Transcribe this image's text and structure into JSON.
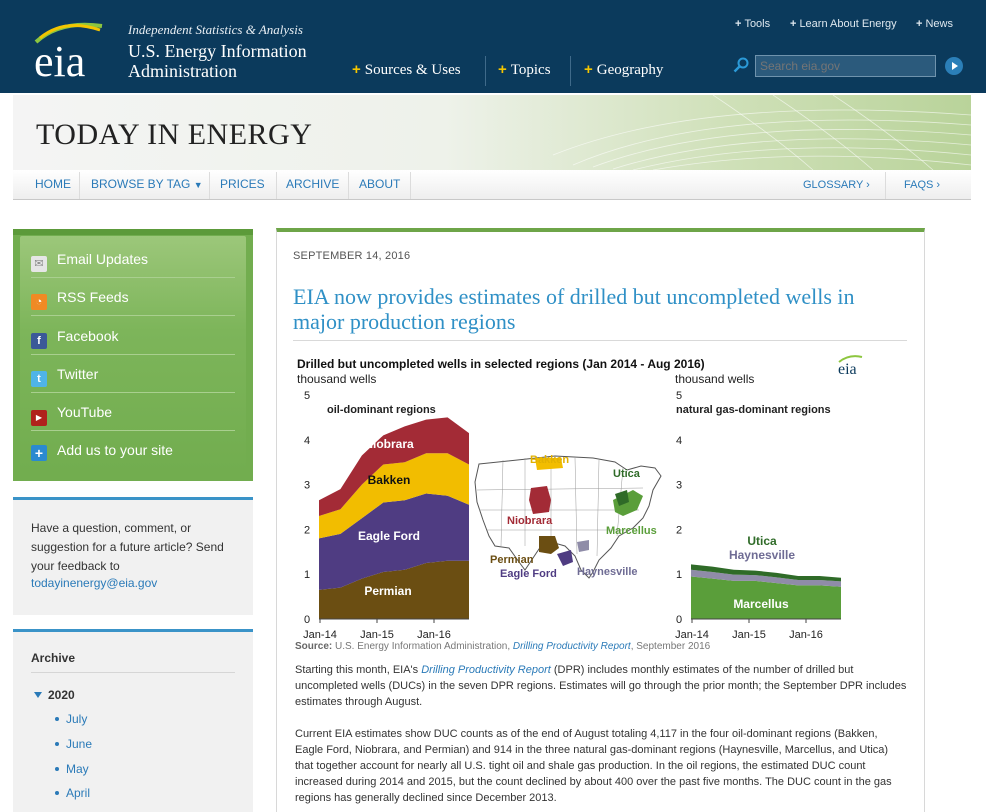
{
  "header": {
    "tagline": "Independent Statistics & Analysis",
    "name_line1": "U.S. Energy Information",
    "name_line2": "Administration",
    "logo_text": "eia",
    "utility_links": [
      "Tools",
      "Learn About Energy",
      "News"
    ],
    "main_nav": [
      "Sources & Uses",
      "Topics",
      "Geography"
    ],
    "search_placeholder": "Search eia.gov"
  },
  "banner": {
    "title": "TODAY IN ENERGY"
  },
  "subnav": {
    "items": [
      "HOME",
      "BROWSE BY TAG",
      "PRICES",
      "ARCHIVE",
      "ABOUT"
    ],
    "right_items": [
      "GLOSSARY ›",
      "FAQS ›"
    ]
  },
  "sidebar": {
    "social": [
      {
        "label": "Email Updates",
        "icon": "email-icon"
      },
      {
        "label": "RSS Feeds",
        "icon": "rss-icon"
      },
      {
        "label": "Facebook",
        "icon": "facebook-icon"
      },
      {
        "label": "Twitter",
        "icon": "twitter-icon"
      },
      {
        "label": "YouTube",
        "icon": "youtube-icon"
      },
      {
        "label": "Add us to your site",
        "icon": "plus-icon"
      }
    ],
    "feedback_text": "Have a question, comment, or suggestion for a future article? Send your feedback to",
    "feedback_email": "todayinenergy@eia.gov",
    "archive_title": "Archive",
    "archive_year": "2020",
    "archive_months": [
      "July",
      "June",
      "May",
      "April"
    ]
  },
  "article": {
    "date": "SEPTEMBER 14, 2016",
    "title": "EIA now provides estimates of drilled but uncompleted wells in major production regions",
    "source_label": "Source:",
    "source_text": "U.S. Energy Information Administration,",
    "source_link": "Drilling Productivity Report",
    "source_date": ", September 2016",
    "para1_a": "Starting this month, EIA's ",
    "para1_link": "Drilling Productivity Report",
    "para1_b": " (DPR) includes monthly estimates of the number of drilled but uncompleted wells (DUCs) in the seven DPR regions. Estimates will go through the prior month; the September DPR includes estimates through August.",
    "para2": "Current EIA estimates show DUC counts as of the end of August totaling 4,117 in the four oil-dominant regions (Bakken, Eagle Ford, Niobrara, and Permian) and 914 in the three natural gas-dominant regions (Haynesville, Marcellus, and Utica) that together account for nearly all U.S. tight oil and shale gas production. In the oil regions, the estimated DUC count increased during 2014 and 2015, but the count declined by about 400 over the past five months. The DUC count in the gas regions has generally declined since December 2013."
  },
  "chart_data": {
    "type": "area",
    "title": "Drilled but uncompleted wells in selected regions (Jan 2014 - Aug 2016)",
    "logo": "eia",
    "panels": [
      {
        "subtitle": "oil-dominant regions",
        "ylabel": "thousand wells",
        "ylim": [
          0,
          5
        ],
        "yticks": [
          "0",
          "1",
          "2",
          "3",
          "4",
          "5"
        ],
        "xticks": [
          "Jan-14",
          "Jan-15",
          "Jan-16"
        ],
        "series": [
          {
            "name": "Permian",
            "color": "#6b4e12",
            "values": [
              0.65,
              0.7,
              0.9,
              1.05,
              1.1,
              1.25,
              1.3,
              1.3
            ]
          },
          {
            "name": "Eagle Ford",
            "color": "#4f3c82",
            "values": [
              1.15,
              1.2,
              1.35,
              1.55,
              1.55,
              1.55,
              1.45,
              1.25
            ]
          },
          {
            "name": "Bakken",
            "color": "#f2bd00",
            "values": [
              0.5,
              0.55,
              0.75,
              0.85,
              0.85,
              0.9,
              0.95,
              0.9
            ]
          },
          {
            "name": "Niobrara",
            "color": "#a32b36",
            "values": [
              0.35,
              0.45,
              0.65,
              0.65,
              0.8,
              0.75,
              0.8,
              0.7
            ]
          }
        ]
      },
      {
        "subtitle": "natural gas-dominant regions",
        "ylabel": "thousand wells",
        "ylim": [
          0,
          5
        ],
        "yticks": [
          "0",
          "1",
          "2",
          "3",
          "4",
          "5"
        ],
        "xticks": [
          "Jan-14",
          "Jan-15",
          "Jan-16"
        ],
        "series": [
          {
            "name": "Marcellus",
            "color": "#5a9e3a",
            "values": [
              0.95,
              0.9,
              0.85,
              0.85,
              0.8,
              0.75,
              0.75,
              0.72
            ]
          },
          {
            "name": "Haynesville",
            "color": "#8f8ca8",
            "values": [
              0.15,
              0.15,
              0.14,
              0.13,
              0.13,
              0.12,
              0.12,
              0.12
            ]
          },
          {
            "name": "Utica",
            "color": "#2f6b28",
            "values": [
              0.12,
              0.12,
              0.11,
              0.1,
              0.1,
              0.09,
              0.09,
              0.08
            ]
          }
        ]
      }
    ],
    "map_labels": [
      {
        "name": "Bakken",
        "color": "#e2b100"
      },
      {
        "name": "Utica",
        "color": "#2f6b28"
      },
      {
        "name": "Niobrara",
        "color": "#a32b36"
      },
      {
        "name": "Marcellus",
        "color": "#5a9e3a"
      },
      {
        "name": "Permian",
        "color": "#6b4e12"
      },
      {
        "name": "Eagle Ford",
        "color": "#4f3c82"
      },
      {
        "name": "Haynesville",
        "color": "#6f6c94"
      }
    ]
  }
}
